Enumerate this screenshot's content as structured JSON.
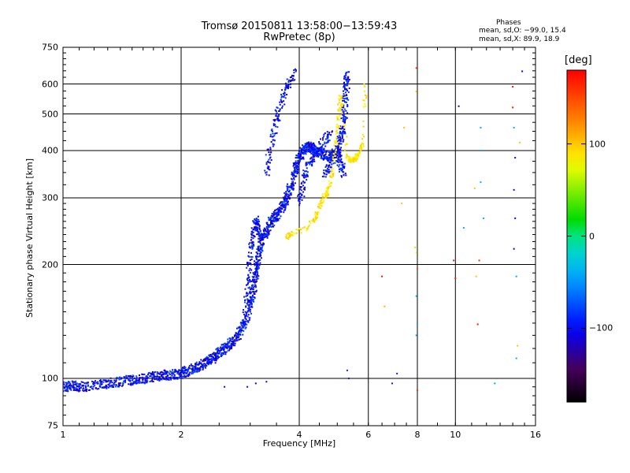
{
  "chart_data": {
    "type": "scatter",
    "title": "Tromsø 20150811 13:58:00−13:59:43",
    "subtitle": "RwPretec (8p)",
    "xlabel": "Frequency [MHz]",
    "ylabel": "Stationary phase Virtual Height [km]",
    "x_scale": "log2",
    "y_scale": "log",
    "xlim": [
      1,
      16
    ],
    "ylim": [
      75,
      750
    ],
    "x_ticks": [
      1,
      2,
      4,
      6,
      8,
      10,
      16
    ],
    "x_tick_labels": [
      "1",
      "2",
      "4",
      "6",
      "8",
      "10",
      "16"
    ],
    "y_ticks": [
      75,
      100,
      200,
      300,
      400,
      500,
      600,
      750
    ],
    "y_tick_labels": [
      "75",
      "100",
      "200",
      "300",
      "400",
      "500",
      "600",
      "750"
    ],
    "grid": true,
    "phase_stats": {
      "title": "Phases",
      "line_o": "mean, sd,O:  −99.0, 15.4",
      "line_x": "mean, sd,X:  89.9, 18.9"
    },
    "colorbar": {
      "label": "[deg]",
      "range": [
        -180,
        180
      ],
      "ticks": [
        100,
        0,
        -100
      ],
      "tick_labels": [
        "100",
        "0",
        "−100"
      ]
    },
    "series": [
      {
        "mode": "O",
        "phase_deg": -99.0,
        "trace": [
          [
            1.0,
            95
          ],
          [
            1.05,
            96
          ],
          [
            1.1,
            95
          ],
          [
            1.2,
            96
          ],
          [
            1.3,
            97
          ],
          [
            1.4,
            98
          ],
          [
            1.5,
            99
          ],
          [
            1.6,
            100
          ],
          [
            1.7,
            101
          ],
          [
            1.8,
            102
          ],
          [
            1.9,
            102
          ],
          [
            2.0,
            103
          ],
          [
            2.1,
            105
          ],
          [
            2.2,
            107
          ],
          [
            2.3,
            110
          ],
          [
            2.4,
            113
          ],
          [
            2.5,
            117
          ],
          [
            2.6,
            120
          ],
          [
            2.7,
            125
          ],
          [
            2.8,
            130
          ],
          [
            2.9,
            140
          ],
          [
            3.0,
            155
          ],
          [
            3.05,
            170
          ],
          [
            3.1,
            190
          ],
          [
            3.15,
            210
          ],
          [
            3.2,
            230
          ],
          [
            3.3,
            245
          ],
          [
            3.4,
            260
          ],
          [
            3.5,
            270
          ],
          [
            3.6,
            280
          ],
          [
            3.7,
            295
          ],
          [
            3.8,
            320
          ],
          [
            3.9,
            350
          ],
          [
            4.0,
            380
          ],
          [
            4.1,
            400
          ],
          [
            4.2,
            410
          ],
          [
            4.3,
            405
          ],
          [
            4.4,
            395
          ],
          [
            4.6,
            390
          ],
          [
            4.8,
            385
          ],
          [
            5.0,
            395
          ],
          [
            5.1,
            430
          ],
          [
            5.2,
            480
          ],
          [
            5.25,
            560
          ],
          [
            5.3,
            640
          ]
        ],
        "branches": [
          [
            [
              2.9,
              145
            ],
            [
              2.95,
              175
            ],
            [
              3.0,
              210
            ],
            [
              3.05,
              240
            ],
            [
              3.1,
              260
            ],
            [
              3.15,
              250
            ],
            [
              3.2,
              230
            ]
          ],
          [
            [
              3.3,
              350
            ],
            [
              3.4,
              420
            ],
            [
              3.5,
              480
            ],
            [
              3.6,
              540
            ],
            [
              3.75,
              600
            ],
            [
              3.9,
              640
            ]
          ],
          [
            [
              4.0,
              290
            ],
            [
              4.1,
              330
            ],
            [
              4.2,
              365
            ],
            [
              4.4,
              400
            ],
            [
              4.6,
              420
            ],
            [
              4.8,
              440
            ]
          ],
          [
            [
              4.6,
              340
            ],
            [
              4.8,
              365
            ],
            [
              5.0,
              400
            ],
            [
              5.1,
              370
            ],
            [
              5.2,
              350
            ]
          ]
        ]
      },
      {
        "mode": "X",
        "phase_deg": 89.9,
        "trace": [
          [
            3.7,
            235
          ],
          [
            3.8,
            240
          ],
          [
            4.2,
            250
          ],
          [
            4.4,
            265
          ],
          [
            4.5,
            285
          ],
          [
            4.6,
            300
          ],
          [
            4.7,
            310
          ],
          [
            4.8,
            330
          ],
          [
            4.9,
            380
          ],
          [
            5.0,
            440
          ],
          [
            5.05,
            500
          ],
          [
            5.1,
            560
          ],
          [
            5.3,
            385
          ],
          [
            5.4,
            378
          ],
          [
            5.5,
            378
          ],
          [
            5.6,
            385
          ],
          [
            5.7,
            395
          ],
          [
            5.8,
            420
          ],
          [
            5.9,
            600
          ]
        ]
      }
    ],
    "scattered_points": [
      [
        5.35,
        100,
        -90
      ],
      [
        5.3,
        105,
        -90
      ],
      [
        6.9,
        97,
        -90
      ],
      [
        7.1,
        103,
        -90
      ],
      [
        2.58,
        95,
        -120
      ],
      [
        2.95,
        95,
        -110
      ],
      [
        3.1,
        97,
        -100
      ],
      [
        3.3,
        98,
        -120
      ],
      [
        7.95,
        661,
        150
      ],
      [
        7.95,
        573,
        100
      ],
      [
        7.9,
        222,
        60
      ],
      [
        7.95,
        215,
        70
      ],
      [
        8.0,
        195,
        150
      ],
      [
        7.95,
        165,
        -40
      ],
      [
        8.0,
        139,
        -40
      ],
      [
        7.95,
        130,
        -40
      ],
      [
        8.0,
        93,
        160
      ],
      [
        6.5,
        186,
        170
      ],
      [
        6.6,
        155,
        110
      ],
      [
        7.3,
        290,
        100
      ],
      [
        7.4,
        460,
        100
      ],
      [
        9.9,
        205,
        170
      ],
      [
        10.0,
        184,
        170
      ],
      [
        10.2,
        524,
        -130
      ],
      [
        10.5,
        250,
        -40
      ],
      [
        11.2,
        318,
        100
      ],
      [
        11.3,
        186,
        100
      ],
      [
        11.5,
        205,
        160
      ],
      [
        11.4,
        139,
        170
      ],
      [
        11.6,
        460,
        -40
      ],
      [
        11.7,
        400,
        -40
      ],
      [
        11.6,
        330,
        -40
      ],
      [
        11.8,
        265,
        -40
      ],
      [
        12.6,
        97,
        -40
      ],
      [
        14.0,
        590,
        170
      ],
      [
        14.0,
        520,
        170
      ],
      [
        14.1,
        460,
        -40
      ],
      [
        14.2,
        383,
        -100
      ],
      [
        14.1,
        315,
        -100
      ],
      [
        14.2,
        265,
        -100
      ],
      [
        14.1,
        220,
        -130
      ],
      [
        14.3,
        186,
        -40
      ],
      [
        14.4,
        122,
        100
      ],
      [
        14.3,
        113,
        -40
      ],
      [
        14.6,
        420,
        100
      ],
      [
        14.8,
        648,
        -100
      ]
    ]
  }
}
